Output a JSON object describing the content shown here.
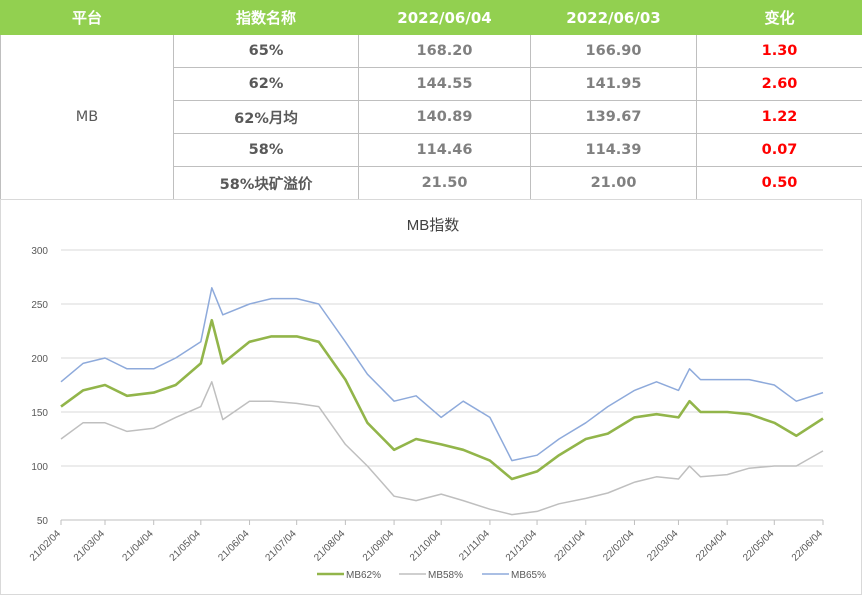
{
  "table": {
    "headers": [
      "平台",
      "指数名称",
      "2022/06/04",
      "2022/06/03",
      "变化"
    ],
    "platform": "MB",
    "rows": [
      {
        "name": "65%",
        "v1": "168.20",
        "v2": "166.90",
        "chg": "1.30"
      },
      {
        "name": "62%",
        "v1": "144.55",
        "v2": "141.95",
        "chg": "2.60"
      },
      {
        "name": "62%月均",
        "v1": "140.89",
        "v2": "139.67",
        "chg": "1.22"
      },
      {
        "name": "58%",
        "v1": "114.46",
        "v2": "114.39",
        "chg": "0.07"
      },
      {
        "name": "58%块矿溢价",
        "v1": "21.50",
        "v2": "21.00",
        "chg": "0.50"
      }
    ]
  },
  "colors": {
    "header_bg": "#92d050",
    "change_text": "#ff0000",
    "mb62": "#92b54a",
    "mb58": "#bfbfbf",
    "mb65": "#8eaadb"
  },
  "chart_data": {
    "type": "line",
    "title": "MB指数",
    "ylim": [
      50,
      300
    ],
    "yticks": [
      "300",
      "250",
      "200",
      "150",
      "100",
      "50"
    ],
    "grid": true,
    "legend_position": "bottom",
    "xticks": [
      "21/02/04",
      "21/03/04",
      "21/04/04",
      "21/05/04",
      "21/06/04",
      "21/07/04",
      "21/08/04",
      "21/09/04",
      "21/10/04",
      "21/11/04",
      "21/12/04",
      "22/01/04",
      "22/02/04",
      "22/03/04",
      "22/04/04",
      "22/05/04",
      "22/06/04"
    ],
    "x": [
      "21/02/04",
      "21/02/18",
      "21/03/04",
      "21/03/18",
      "21/04/04",
      "21/04/18",
      "21/05/04",
      "21/05/11",
      "21/05/18",
      "21/06/04",
      "21/06/18",
      "21/07/04",
      "21/07/18",
      "21/08/04",
      "21/08/18",
      "21/09/04",
      "21/09/18",
      "21/10/04",
      "21/10/18",
      "21/11/04",
      "21/11/18",
      "21/12/04",
      "21/12/18",
      "22/01/04",
      "22/01/18",
      "22/02/04",
      "22/02/18",
      "22/03/04",
      "22/03/11",
      "22/03/18",
      "22/04/04",
      "22/04/18",
      "22/05/04",
      "22/05/18",
      "22/06/04"
    ],
    "series": [
      {
        "name": "MB62%",
        "values": [
          155,
          170,
          175,
          165,
          168,
          175,
          195,
          235,
          195,
          215,
          220,
          220,
          215,
          180,
          140,
          115,
          125,
          120,
          115,
          105,
          88,
          95,
          110,
          125,
          130,
          145,
          148,
          145,
          160,
          150,
          150,
          148,
          140,
          128,
          144
        ]
      },
      {
        "name": "MB58%",
        "values": [
          125,
          140,
          140,
          132,
          135,
          145,
          155,
          178,
          143,
          160,
          160,
          158,
          155,
          120,
          100,
          72,
          68,
          74,
          68,
          60,
          55,
          58,
          65,
          70,
          75,
          85,
          90,
          88,
          100,
          90,
          92,
          98,
          100,
          100,
          114
        ]
      },
      {
        "name": "MB65%",
        "values": [
          178,
          195,
          200,
          190,
          190,
          200,
          215,
          265,
          240,
          250,
          255,
          255,
          250,
          215,
          185,
          160,
          165,
          145,
          160,
          145,
          105,
          110,
          125,
          140,
          155,
          170,
          178,
          170,
          190,
          180,
          180,
          180,
          175,
          160,
          168
        ]
      }
    ]
  }
}
